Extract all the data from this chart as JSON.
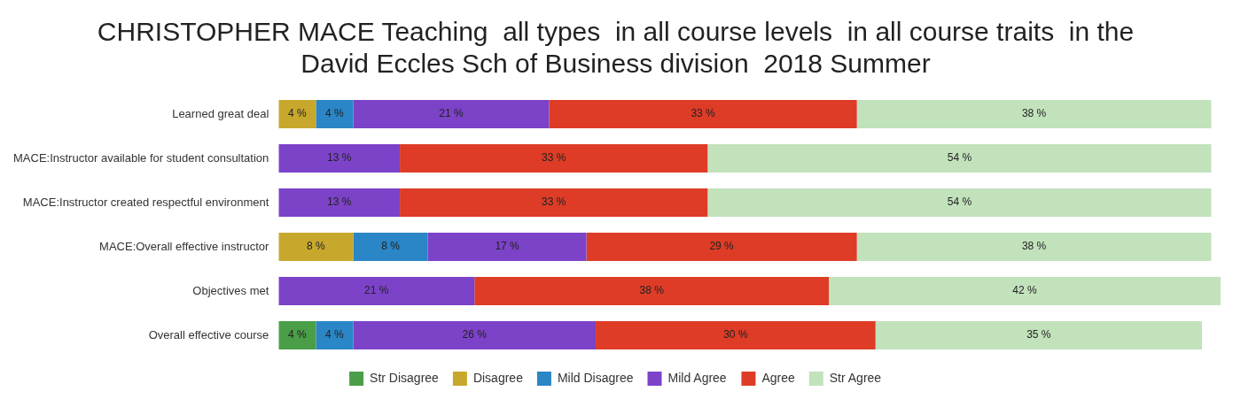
{
  "chart_data": {
    "type": "bar",
    "orientation": "horizontal",
    "stacked": true,
    "title": "CHRISTOPHER MACE Teaching  all types  in all course levels  in all course traits  in the David Eccles Sch of Business division  2018 Summer",
    "categories": [
      "Learned great deal",
      "MACE:Instructor available for student consultation",
      "MACE:Instructor created respectful environment",
      "MACE:Overall effective instructor",
      "Objectives met",
      "Overall effective course"
    ],
    "series": [
      {
        "name": "Str Disagree",
        "color": "#4a9e48",
        "values": [
          null,
          null,
          null,
          null,
          null,
          4
        ],
        "value_labels": [
          null,
          null,
          null,
          null,
          null,
          "4 %"
        ]
      },
      {
        "name": "Disagree",
        "color": "#c8a82c",
        "values": [
          4,
          null,
          null,
          8,
          null,
          null
        ],
        "value_labels": [
          "4 %",
          null,
          null,
          "8 %",
          null,
          null
        ]
      },
      {
        "name": "Mild Disagree",
        "color": "#2a86c6",
        "values": [
          4,
          null,
          null,
          8,
          null,
          4
        ],
        "value_labels": [
          "4 %",
          null,
          null,
          "8 %",
          null,
          "4 %"
        ]
      },
      {
        "name": "Mild Agree",
        "color": "#7c42c8",
        "values": [
          21,
          13,
          13,
          17,
          21,
          26
        ],
        "value_labels": [
          "21 %",
          "13 %",
          "13 %",
          "17 %",
          "21 %",
          "26 %"
        ]
      },
      {
        "name": "Agree",
        "color": "#de3c26",
        "values": [
          33,
          33,
          33,
          29,
          38,
          30
        ],
        "value_labels": [
          "33 %",
          "33 %",
          "33 %",
          "29 %",
          "38 %",
          "30 %"
        ]
      },
      {
        "name": "Str Agree",
        "color": "#c2e2bc",
        "values": [
          38,
          54,
          54,
          38,
          42,
          35
        ],
        "value_labels": [
          "38 %",
          "54 %",
          "54 %",
          "38 %",
          "42 %",
          "35 %"
        ]
      }
    ],
    "xlim": [
      0,
      101
    ],
    "tick_labels": "y",
    "grid": false,
    "legend": "bottom"
  }
}
